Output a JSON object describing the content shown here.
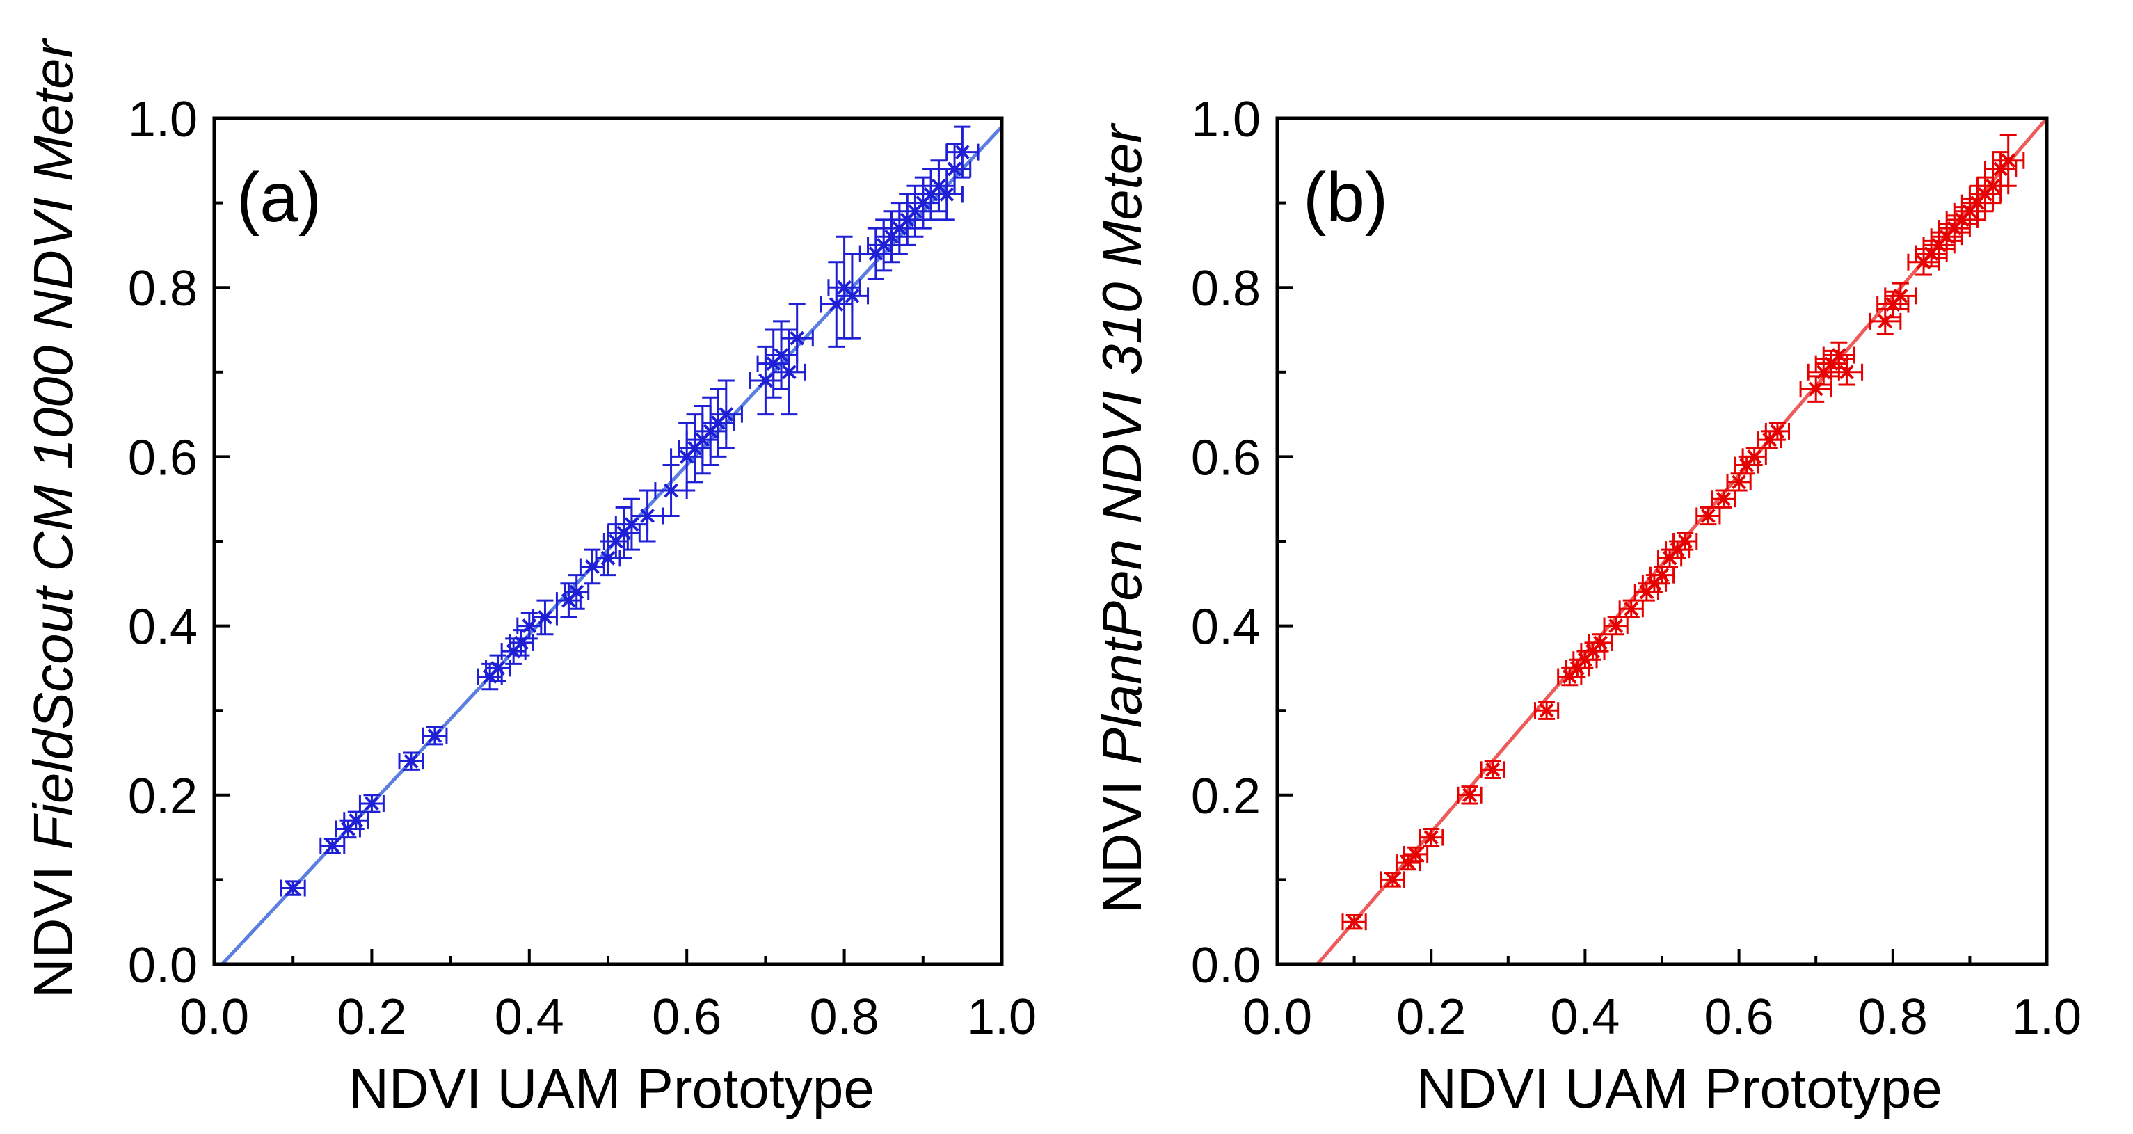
{
  "chart_data": [
    {
      "type": "scatter",
      "panel_label": "(a)",
      "xlabel": "NDVI UAM Prototype",
      "ylabel_prefix": "NDVI ",
      "ylabel_italic": "FieldScout CM 1000 NDVI Meter",
      "xlim": [
        0.0,
        1.0
      ],
      "ylim": [
        0.0,
        1.0
      ],
      "xticks": [
        "0.0",
        "0.2",
        "0.4",
        "0.6",
        "0.8",
        "1.0"
      ],
      "yticks": [
        "0.0",
        "0.2",
        "0.4",
        "0.6",
        "0.8",
        "1.0"
      ],
      "color": "#1f1fd6",
      "fit_color": "#5b7fe0",
      "fit": {
        "slope": 1.0,
        "intercept": -0.01
      },
      "x": [
        0.1,
        0.15,
        0.17,
        0.18,
        0.2,
        0.25,
        0.28,
        0.35,
        0.36,
        0.38,
        0.39,
        0.4,
        0.42,
        0.45,
        0.46,
        0.48,
        0.5,
        0.51,
        0.52,
        0.53,
        0.55,
        0.58,
        0.6,
        0.61,
        0.62,
        0.63,
        0.64,
        0.65,
        0.7,
        0.71,
        0.72,
        0.73,
        0.74,
        0.79,
        0.8,
        0.81,
        0.84,
        0.85,
        0.86,
        0.87,
        0.88,
        0.89,
        0.9,
        0.91,
        0.92,
        0.93,
        0.94,
        0.95
      ],
      "y": [
        0.09,
        0.14,
        0.16,
        0.17,
        0.19,
        0.24,
        0.27,
        0.34,
        0.35,
        0.37,
        0.38,
        0.4,
        0.41,
        0.43,
        0.44,
        0.47,
        0.48,
        0.5,
        0.51,
        0.52,
        0.53,
        0.56,
        0.6,
        0.61,
        0.62,
        0.63,
        0.64,
        0.65,
        0.69,
        0.71,
        0.72,
        0.7,
        0.74,
        0.78,
        0.8,
        0.79,
        0.84,
        0.85,
        0.86,
        0.87,
        0.88,
        0.89,
        0.9,
        0.91,
        0.92,
        0.91,
        0.94,
        0.96
      ],
      "xerr": [
        0.015,
        0.015,
        0.015,
        0.015,
        0.015,
        0.015,
        0.015,
        0.015,
        0.015,
        0.015,
        0.015,
        0.015,
        0.015,
        0.015,
        0.015,
        0.015,
        0.015,
        0.015,
        0.02,
        0.02,
        0.02,
        0.02,
        0.02,
        0.02,
        0.02,
        0.02,
        0.02,
        0.02,
        0.02,
        0.02,
        0.02,
        0.02,
        0.02,
        0.02,
        0.02,
        0.02,
        0.02,
        0.02,
        0.02,
        0.02,
        0.02,
        0.02,
        0.02,
        0.02,
        0.02,
        0.02,
        0.02,
        0.02
      ],
      "yerr": [
        0.008,
        0.008,
        0.01,
        0.01,
        0.01,
        0.01,
        0.01,
        0.015,
        0.015,
        0.015,
        0.015,
        0.015,
        0.02,
        0.02,
        0.02,
        0.02,
        0.02,
        0.02,
        0.03,
        0.03,
        0.03,
        0.03,
        0.04,
        0.04,
        0.04,
        0.04,
        0.04,
        0.04,
        0.04,
        0.04,
        0.04,
        0.05,
        0.04,
        0.05,
        0.06,
        0.05,
        0.03,
        0.03,
        0.03,
        0.03,
        0.03,
        0.03,
        0.03,
        0.03,
        0.03,
        0.03,
        0.03,
        0.03
      ]
    },
    {
      "type": "scatter",
      "panel_label": "(b)",
      "xlabel": "NDVI UAM Prototype",
      "ylabel_prefix": "NDVI ",
      "ylabel_italic": "PlantPen NDVI 310 Meter",
      "xlim": [
        0.0,
        1.0
      ],
      "ylim": [
        0.0,
        1.0
      ],
      "xticks": [
        "0.0",
        "0.2",
        "0.4",
        "0.6",
        "0.8",
        "1.0"
      ],
      "yticks": [
        "0.0",
        "0.2",
        "0.4",
        "0.6",
        "0.8",
        "1.0"
      ],
      "color": "#e60000",
      "fit_color": "#ef5a5a",
      "fit": {
        "slope": 1.055,
        "intercept": -0.055
      },
      "x": [
        0.1,
        0.15,
        0.17,
        0.18,
        0.2,
        0.25,
        0.28,
        0.35,
        0.38,
        0.39,
        0.4,
        0.41,
        0.42,
        0.44,
        0.46,
        0.48,
        0.49,
        0.5,
        0.51,
        0.52,
        0.53,
        0.56,
        0.58,
        0.6,
        0.61,
        0.62,
        0.64,
        0.65,
        0.7,
        0.71,
        0.72,
        0.73,
        0.74,
        0.79,
        0.8,
        0.81,
        0.84,
        0.85,
        0.86,
        0.87,
        0.88,
        0.89,
        0.9,
        0.91,
        0.92,
        0.93,
        0.94,
        0.95
      ],
      "y": [
        0.05,
        0.1,
        0.12,
        0.13,
        0.15,
        0.2,
        0.23,
        0.3,
        0.34,
        0.35,
        0.36,
        0.37,
        0.38,
        0.4,
        0.42,
        0.44,
        0.45,
        0.46,
        0.48,
        0.49,
        0.5,
        0.53,
        0.55,
        0.57,
        0.59,
        0.6,
        0.62,
        0.63,
        0.68,
        0.7,
        0.71,
        0.72,
        0.7,
        0.76,
        0.78,
        0.79,
        0.83,
        0.84,
        0.85,
        0.86,
        0.87,
        0.88,
        0.89,
        0.9,
        0.91,
        0.92,
        0.94,
        0.95
      ],
      "xerr": [
        0.015,
        0.015,
        0.015,
        0.015,
        0.015,
        0.015,
        0.015,
        0.015,
        0.015,
        0.015,
        0.015,
        0.015,
        0.015,
        0.015,
        0.015,
        0.015,
        0.015,
        0.015,
        0.015,
        0.015,
        0.015,
        0.015,
        0.015,
        0.015,
        0.015,
        0.015,
        0.015,
        0.015,
        0.02,
        0.02,
        0.02,
        0.02,
        0.02,
        0.02,
        0.02,
        0.02,
        0.02,
        0.02,
        0.02,
        0.02,
        0.02,
        0.02,
        0.02,
        0.02,
        0.02,
        0.02,
        0.02,
        0.02
      ],
      "yerr": [
        0.008,
        0.008,
        0.008,
        0.008,
        0.01,
        0.01,
        0.01,
        0.01,
        0.01,
        0.01,
        0.01,
        0.01,
        0.01,
        0.01,
        0.01,
        0.01,
        0.01,
        0.01,
        0.01,
        0.01,
        0.01,
        0.01,
        0.01,
        0.01,
        0.01,
        0.01,
        0.01,
        0.01,
        0.015,
        0.015,
        0.015,
        0.015,
        0.015,
        0.015,
        0.015,
        0.015,
        0.015,
        0.015,
        0.015,
        0.015,
        0.015,
        0.015,
        0.015,
        0.02,
        0.02,
        0.02,
        0.02,
        0.03
      ]
    }
  ]
}
